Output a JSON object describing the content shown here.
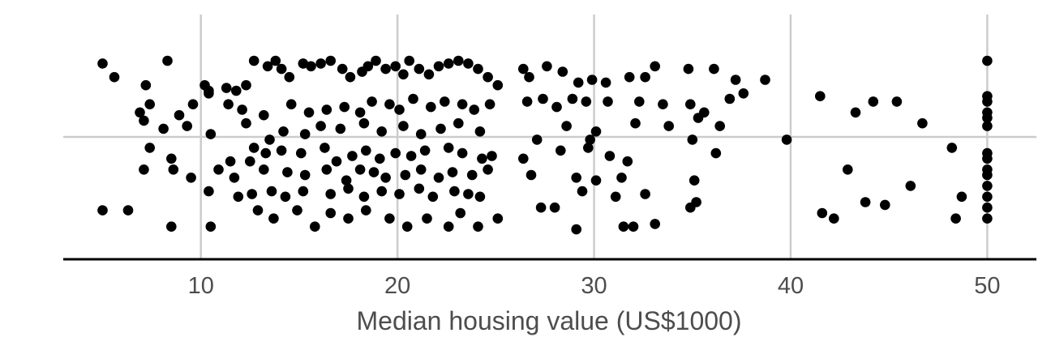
{
  "chart_data": {
    "type": "scatter",
    "title": "",
    "xlabel": "Median housing value (US$1000)",
    "ylabel": "",
    "xlim": [
      3,
      52.5
    ],
    "ylim": [
      -0.45,
      0.45
    ],
    "x_ticks": [
      10,
      20,
      30,
      40,
      50
    ],
    "x_tick_labels": [
      "10",
      "20",
      "30",
      "40",
      "50"
    ],
    "grid": true,
    "legend": "none",
    "jitter": "vertical",
    "marker_color": "#000000",
    "grid_color": "#cccccc",
    "points": [
      [
        5,
        0.27
      ],
      [
        5.6,
        0.22
      ],
      [
        7.2,
        0.19
      ],
      [
        8.3,
        0.28
      ],
      [
        10.2,
        0.19
      ],
      [
        10.4,
        0.17
      ],
      [
        11.3,
        0.18
      ],
      [
        11.8,
        0.17
      ],
      [
        12.3,
        0.19
      ],
      [
        12.7,
        0.28
      ],
      [
        13.4,
        0.26
      ],
      [
        13.8,
        0.28
      ],
      [
        14.1,
        0.25
      ],
      [
        14.5,
        0.22
      ],
      [
        15.2,
        0.27
      ],
      [
        15.6,
        0.26
      ],
      [
        16.1,
        0.27
      ],
      [
        16.6,
        0.28
      ],
      [
        17.2,
        0.25
      ],
      [
        17.6,
        0.22
      ],
      [
        18.2,
        0.24
      ],
      [
        18.5,
        0.26
      ],
      [
        18.9,
        0.28
      ],
      [
        19.4,
        0.25
      ],
      [
        19.9,
        0.26
      ],
      [
        20.3,
        0.23
      ],
      [
        20.6,
        0.28
      ],
      [
        21.1,
        0.25
      ],
      [
        21.6,
        0.23
      ],
      [
        22.1,
        0.26
      ],
      [
        22.6,
        0.27
      ],
      [
        23.1,
        0.28
      ],
      [
        23.6,
        0.27
      ],
      [
        24.1,
        0.25
      ],
      [
        24.6,
        0.22
      ],
      [
        25.1,
        0.19
      ],
      [
        26.4,
        0.25
      ],
      [
        26.7,
        0.22
      ],
      [
        27.6,
        0.26
      ],
      [
        28.4,
        0.24
      ],
      [
        29.2,
        0.2
      ],
      [
        29.9,
        0.21
      ],
      [
        30.6,
        0.2
      ],
      [
        31.8,
        0.22
      ],
      [
        32.6,
        0.22
      ],
      [
        33.1,
        0.26
      ],
      [
        34.8,
        0.25
      ],
      [
        36.1,
        0.25
      ],
      [
        37.2,
        0.21
      ],
      [
        38.7,
        0.21
      ],
      [
        6.9,
        0.09
      ],
      [
        7.4,
        0.12
      ],
      [
        8.9,
        0.08
      ],
      [
        9.6,
        0.12
      ],
      [
        10.4,
        0.16
      ],
      [
        11.4,
        0.12
      ],
      [
        12.1,
        0.1
      ],
      [
        13.2,
        0.08
      ],
      [
        14.6,
        0.12
      ],
      [
        15.5,
        0.09
      ],
      [
        16.4,
        0.1
      ],
      [
        17.3,
        0.11
      ],
      [
        18.1,
        0.09
      ],
      [
        18.7,
        0.13
      ],
      [
        19.6,
        0.12
      ],
      [
        20.1,
        0.1
      ],
      [
        20.8,
        0.14
      ],
      [
        21.7,
        0.11
      ],
      [
        22.4,
        0.13
      ],
      [
        23.3,
        0.12
      ],
      [
        23.9,
        0.1
      ],
      [
        24.7,
        0.12
      ],
      [
        26.6,
        0.13
      ],
      [
        27.4,
        0.14
      ],
      [
        28.1,
        0.11
      ],
      [
        28.9,
        0.14
      ],
      [
        29.6,
        0.13
      ],
      [
        30.7,
        0.13
      ],
      [
        32.3,
        0.13
      ],
      [
        33.5,
        0.12
      ],
      [
        34.9,
        0.12
      ],
      [
        35.6,
        0.09
      ],
      [
        36.9,
        0.14
      ],
      [
        37.6,
        0.16
      ],
      [
        41.5,
        0.15
      ],
      [
        43.3,
        0.09
      ],
      [
        44.2,
        0.13
      ],
      [
        45.4,
        0.13
      ],
      [
        46.7,
        0.05
      ],
      [
        50,
        0.15
      ],
      [
        50,
        0.13
      ],
      [
        50,
        0.09
      ],
      [
        50,
        0.07
      ],
      [
        50,
        0.04
      ],
      [
        50,
        0.28
      ],
      [
        7.1,
        0.06
      ],
      [
        8.1,
        0.03
      ],
      [
        9.3,
        0.04
      ],
      [
        10.5,
        0.01
      ],
      [
        12.3,
        0.05
      ],
      [
        13.5,
        -0.01
      ],
      [
        14.2,
        0.02
      ],
      [
        15.3,
        0.01
      ],
      [
        16.1,
        0.04
      ],
      [
        17.1,
        0.03
      ],
      [
        18.3,
        0.05
      ],
      [
        19.2,
        0.02
      ],
      [
        20.3,
        0.04
      ],
      [
        21.2,
        0.01
      ],
      [
        22.2,
        0.03
      ],
      [
        23.1,
        0.05
      ],
      [
        24.2,
        0.02
      ],
      [
        27.1,
        -0.01
      ],
      [
        28.6,
        0.04
      ],
      [
        29.8,
        -0.01
      ],
      [
        30.1,
        0.02
      ],
      [
        32.1,
        0.05
      ],
      [
        33.8,
        0.04
      ],
      [
        35.3,
        0.07
      ],
      [
        36.4,
        0.04
      ],
      [
        35,
        -0.01
      ],
      [
        39.8,
        -0.01
      ],
      [
        7.4,
        -0.04
      ],
      [
        8.5,
        -0.08
      ],
      [
        11.5,
        -0.09
      ],
      [
        12.7,
        -0.04
      ],
      [
        13.3,
        -0.06
      ],
      [
        14.1,
        -0.05
      ],
      [
        15.1,
        -0.06
      ],
      [
        16.3,
        -0.04
      ],
      [
        16.9,
        -0.09
      ],
      [
        17.7,
        -0.07
      ],
      [
        18.4,
        -0.05
      ],
      [
        19.1,
        -0.08
      ],
      [
        19.9,
        -0.06
      ],
      [
        20.7,
        -0.07
      ],
      [
        21.4,
        -0.05
      ],
      [
        22.6,
        -0.04
      ],
      [
        23.3,
        -0.06
      ],
      [
        24.3,
        -0.08
      ],
      [
        24.8,
        -0.07
      ],
      [
        26.4,
        -0.08
      ],
      [
        28.3,
        -0.05
      ],
      [
        29.7,
        -0.04
      ],
      [
        30.8,
        -0.07
      ],
      [
        31.7,
        -0.09
      ],
      [
        36.2,
        -0.06
      ],
      [
        48.2,
        -0.04
      ],
      [
        50,
        -0.06
      ],
      [
        50,
        -0.08
      ],
      [
        7.1,
        -0.12
      ],
      [
        8.6,
        -0.12
      ],
      [
        9.5,
        -0.15
      ],
      [
        10.9,
        -0.12
      ],
      [
        11.7,
        -0.15
      ],
      [
        12.5,
        -0.09
      ],
      [
        13.2,
        -0.12
      ],
      [
        14.4,
        -0.13
      ],
      [
        15.3,
        -0.14
      ],
      [
        16.4,
        -0.12
      ],
      [
        17.4,
        -0.16
      ],
      [
        18.1,
        -0.12
      ],
      [
        18.8,
        -0.13
      ],
      [
        19.4,
        -0.15
      ],
      [
        20.4,
        -0.14
      ],
      [
        21.2,
        -0.12
      ],
      [
        22.1,
        -0.15
      ],
      [
        22.8,
        -0.13
      ],
      [
        23.8,
        -0.14
      ],
      [
        24.6,
        -0.12
      ],
      [
        26.8,
        -0.14
      ],
      [
        29.1,
        -0.15
      ],
      [
        30.1,
        -0.16
      ],
      [
        31.4,
        -0.15
      ],
      [
        35.1,
        -0.16
      ],
      [
        42.9,
        -0.12
      ],
      [
        50,
        -0.12
      ],
      [
        50,
        -0.14
      ],
      [
        10.4,
        -0.2
      ],
      [
        11.9,
        -0.22
      ],
      [
        12.6,
        -0.21
      ],
      [
        13.6,
        -0.2
      ],
      [
        14.3,
        -0.22
      ],
      [
        15.2,
        -0.2
      ],
      [
        16.6,
        -0.21
      ],
      [
        17.5,
        -0.19
      ],
      [
        18.3,
        -0.22
      ],
      [
        19.2,
        -0.2
      ],
      [
        20.1,
        -0.21
      ],
      [
        21.1,
        -0.19
      ],
      [
        21.8,
        -0.22
      ],
      [
        22.9,
        -0.2
      ],
      [
        23.6,
        -0.21
      ],
      [
        24.2,
        -0.22
      ],
      [
        27.3,
        -0.26
      ],
      [
        28,
        -0.26
      ],
      [
        29.4,
        -0.2
      ],
      [
        31.1,
        -0.22
      ],
      [
        32.6,
        -0.21
      ],
      [
        34.9,
        -0.26
      ],
      [
        35.2,
        -0.24
      ],
      [
        43.8,
        -0.24
      ],
      [
        46.1,
        -0.18
      ],
      [
        48.7,
        -0.22
      ],
      [
        50,
        -0.18
      ],
      [
        50,
        -0.22
      ],
      [
        5,
        -0.27
      ],
      [
        6.3,
        -0.27
      ],
      [
        8.5,
        -0.33
      ],
      [
        10.5,
        -0.33
      ],
      [
        12.9,
        -0.27
      ],
      [
        13.7,
        -0.3
      ],
      [
        14.9,
        -0.27
      ],
      [
        15.8,
        -0.33
      ],
      [
        16.6,
        -0.28
      ],
      [
        17.5,
        -0.3
      ],
      [
        18.4,
        -0.27
      ],
      [
        19.6,
        -0.3
      ],
      [
        20.5,
        -0.33
      ],
      [
        21.5,
        -0.3
      ],
      [
        22.6,
        -0.33
      ],
      [
        23.2,
        -0.28
      ],
      [
        24.1,
        -0.33
      ],
      [
        25.1,
        -0.3
      ],
      [
        29.1,
        -0.34
      ],
      [
        31.5,
        -0.33
      ],
      [
        32,
        -0.33
      ],
      [
        33.1,
        -0.32
      ],
      [
        41.6,
        -0.28
      ],
      [
        42.2,
        -0.3
      ],
      [
        44.8,
        -0.25
      ],
      [
        48.4,
        -0.3
      ],
      [
        50,
        -0.3
      ],
      [
        50,
        -0.26
      ]
    ]
  }
}
